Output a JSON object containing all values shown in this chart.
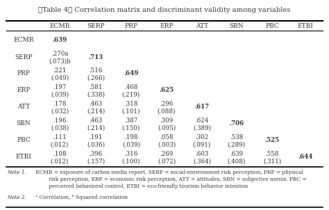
{
  "title": "〈Table 4〉 Correlation matrix and discriminant validity among variables",
  "columns": [
    "ECMR",
    "SERP",
    "PRP",
    "ERP",
    "ATT",
    "SBN",
    "PBC",
    "ETBI"
  ],
  "row_labels": [
    "ECMR",
    "SERP",
    "PRP",
    "ERP",
    "ATT",
    "SBN",
    "PBC",
    "ETBI"
  ],
  "rows_line1": [
    [
      ".639",
      "",
      "",
      "",
      "",
      "",
      "",
      ""
    ],
    [
      ".270a",
      ".713",
      "",
      "",
      "",
      "",
      "",
      ""
    ],
    [
      ".221",
      ".516",
      ".649",
      "",
      "",
      "",
      "",
      ""
    ],
    [
      ".197",
      ".581",
      ".468",
      ".625",
      "",
      "",
      "",
      ""
    ],
    [
      ".178",
      ".463",
      ".318",
      ".296",
      ".617",
      "",
      "",
      ""
    ],
    [
      ".196",
      ".463",
      ".387",
      ".309",
      ".624",
      ".706",
      "",
      ""
    ],
    [
      ".111",
      ".191",
      ".198",
      ".058",
      ".302",
      ".538",
      ".525",
      ""
    ],
    [
      ".108",
      ".396",
      ".316",
      ".269",
      ".603",
      ".639",
      ".558",
      ".644"
    ]
  ],
  "rows_line2": [
    [
      "",
      "",
      "",
      "",
      "",
      "",
      "",
      ""
    ],
    [
      "(.073)b",
      "",
      "",
      "",
      "",
      "",
      "",
      ""
    ],
    [
      "(.049)",
      "(.266)",
      "",
      "",
      "",
      "",
      "",
      ""
    ],
    [
      "(.039)",
      "(.338)",
      "(.219)",
      "",
      "",
      "",
      "",
      ""
    ],
    [
      "(.032)",
      "(.214)",
      "(.101)",
      "(.088)",
      "",
      "",
      "",
      ""
    ],
    [
      "(.038)",
      "(.214)",
      "(.150)",
      "(.095)",
      "(.389)",
      "",
      "",
      ""
    ],
    [
      "(.012)",
      "(.036)",
      "(.039)",
      "(.003)",
      "(.091)",
      "(.289)",
      "",
      ""
    ],
    [
      "(.012)",
      "(.157)",
      "(.100)",
      "(.072)",
      "(.364)",
      "(.408)",
      "(.311)",
      ""
    ]
  ],
  "note1_italic": "Note 1.",
  "note1_rest": " ECMR = exposure of carbon media report, SERP = social-environment risk perception, PRP = physical\n         risk perception, ERP = economic risk perception, ATT = attitudes, SBN = subjective norms, PBC =\n         perceived behavioral control, ETBI = eco-friendly tourism behavior intention",
  "note2_italic": "Note 2.",
  "note2_rest": " ᵃ Correlation, ᵇ Squared correlation",
  "text_color": "#333333",
  "title_fontsize": 7.2,
  "header_fontsize": 6.5,
  "cell_fontsize": 6.2,
  "label_fontsize": 6.5,
  "note_fontsize": 5.3
}
